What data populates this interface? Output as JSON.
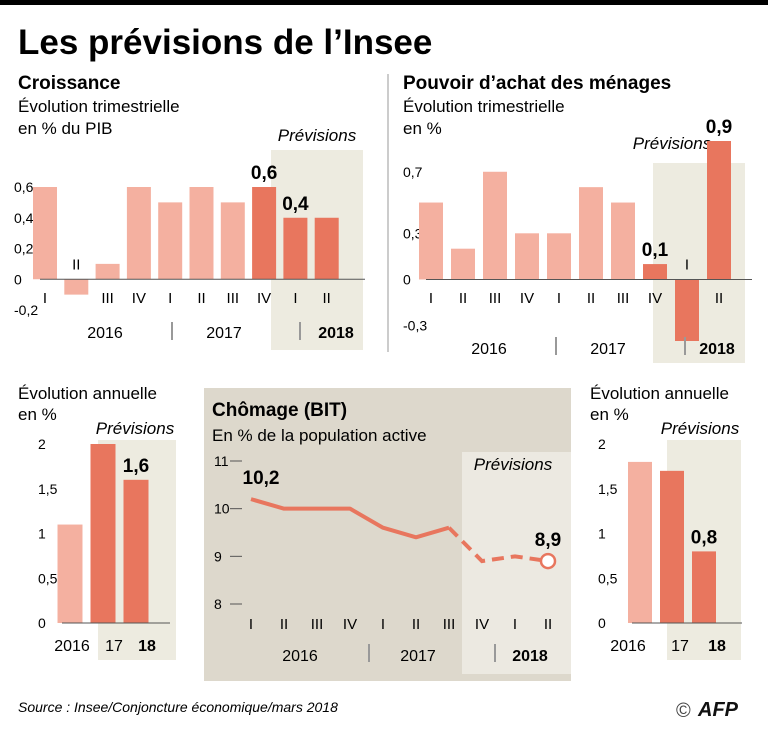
{
  "title": "Les prévisions de l’Insee",
  "source": "Source : Insee/Conjoncture économique/mars 2018",
  "credit_symbol": "©",
  "credit": "AFP",
  "colors": {
    "past": "#f4b0a0",
    "forecast": "#e8765e",
    "shade": "#edebe0",
    "panel": "#ddd8cc",
    "axis": "#555555"
  },
  "chart_data": [
    {
      "id": "croissance",
      "type": "bar",
      "title": "Croissance",
      "subtitle": [
        "Évolution trimestrielle",
        "en % du PIB"
      ],
      "forecast_label": "Prévisions",
      "yticks": [
        "0,6",
        "0,4",
        "0,2",
        "0",
        "-0,2"
      ],
      "ylim": [
        -0.2,
        0.6
      ],
      "categories": [
        "I",
        "II",
        "III",
        "IV",
        "I",
        "II",
        "III",
        "IV",
        "I",
        "II"
      ],
      "values": [
        0.6,
        -0.1,
        0.1,
        0.6,
        0.5,
        0.6,
        0.5,
        0.6,
        0.4,
        0.4
      ],
      "forecast_from": 7,
      "labels": [
        {
          "index": 7,
          "text": "0,6"
        },
        {
          "index": 8,
          "text": "0,4"
        }
      ],
      "years": [
        "2016",
        "2017",
        "2018"
      ]
    },
    {
      "id": "pouvoir",
      "type": "bar",
      "title": "Pouvoir d’achat des ménages",
      "subtitle": [
        "Évolution trimestrielle",
        "en %"
      ],
      "forecast_label": "Prévisions",
      "yticks": [
        "0,7",
        "0,3",
        "0",
        "-0,3"
      ],
      "ylim": [
        -0.4,
        0.9
      ],
      "categories": [
        "I",
        "II",
        "III",
        "IV",
        "I",
        "II",
        "III",
        "IV",
        "I",
        "II"
      ],
      "values": [
        0.5,
        0.2,
        0.7,
        0.3,
        0.3,
        0.6,
        0.5,
        0.1,
        -0.4,
        0.9
      ],
      "forecast_from": 7,
      "labels": [
        {
          "index": 7,
          "text": "0,1"
        },
        {
          "index": 9,
          "text": "0,9"
        }
      ],
      "years": [
        "2016",
        "2017",
        "2018"
      ]
    },
    {
      "id": "annuelle_croissance",
      "type": "bar",
      "subtitle": [
        "Évolution annuelle",
        "en %"
      ],
      "forecast_label": "Prévisions",
      "yticks": [
        "2",
        "1,5",
        "1",
        "0,5",
        "0"
      ],
      "ylim": [
        0,
        2
      ],
      "categories": [
        "2016",
        "17",
        "18"
      ],
      "values": [
        1.1,
        2.0,
        1.6
      ],
      "forecast_from": 1,
      "labels": [
        {
          "index": 2,
          "text": "1,6"
        }
      ]
    },
    {
      "id": "chomage",
      "type": "line",
      "title": "Chômage (BIT)",
      "subtitle": [
        "En % de la population active"
      ],
      "forecast_label": "Prévisions",
      "yticks": [
        "11",
        "10",
        "9",
        "8"
      ],
      "ylim": [
        8,
        11
      ],
      "categories": [
        "I",
        "II",
        "III",
        "IV",
        "I",
        "II",
        "III",
        "IV",
        "I",
        "II"
      ],
      "values": [
        10.2,
        10.0,
        10.0,
        10.0,
        9.6,
        9.4,
        9.6,
        8.9,
        9.0,
        8.9
      ],
      "forecast_from": 7,
      "labels": [
        {
          "index": 0,
          "text": "10,2"
        },
        {
          "index": 9,
          "text": "8,9"
        }
      ],
      "years": [
        "2016",
        "2017",
        "2018"
      ]
    },
    {
      "id": "annuelle_pouvoir",
      "type": "bar",
      "subtitle": [
        "Évolution annuelle",
        "en %"
      ],
      "forecast_label": "Prévisions",
      "yticks": [
        "2",
        "1,5",
        "1",
        "0,5",
        "0"
      ],
      "ylim": [
        0,
        2
      ],
      "categories": [
        "2016",
        "17",
        "18"
      ],
      "values": [
        1.8,
        1.7,
        0.8
      ],
      "forecast_from": 1,
      "labels": [
        {
          "index": 2,
          "text": "0,8"
        }
      ]
    }
  ]
}
